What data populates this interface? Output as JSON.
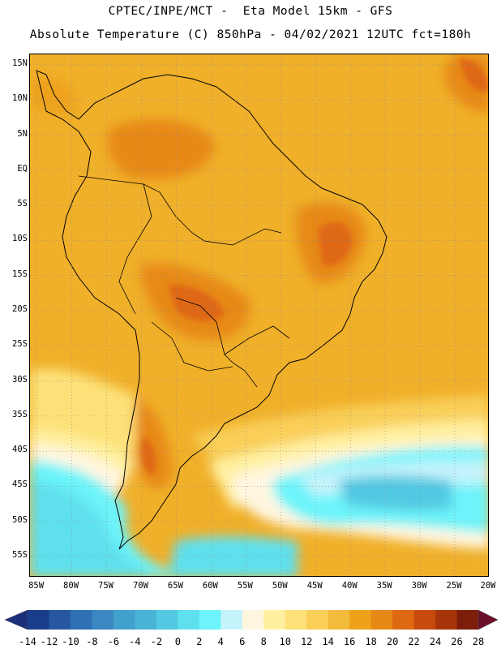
{
  "header": {
    "line1": "CPTEC/INPE/MCT -  Eta Model 15km - GFS",
    "line2": "Absolute Temperature (C) 850hPa - 04/02/2021 12UTC fct=180h"
  },
  "map": {
    "lat_labels": [
      "15N",
      "10N",
      "5N",
      "EQ",
      "5S",
      "10S",
      "15S",
      "20S",
      "25S",
      "30S",
      "35S",
      "40S",
      "45S",
      "50S",
      "55S"
    ],
    "lon_labels": [
      "85W",
      "80W",
      "75W",
      "70W",
      "65W",
      "60W",
      "55W",
      "50W",
      "45W",
      "40W",
      "35W",
      "30W",
      "25W",
      "20W"
    ],
    "lat_range": [
      -58,
      16.5
    ],
    "lon_range": [
      -86,
      -20
    ],
    "grid": "dotted every 5 degrees"
  },
  "colorbar": {
    "labels": [
      "-14",
      "-12",
      "-10",
      "-8",
      "-6",
      "-4",
      "-2",
      "0",
      "2",
      "4",
      "6",
      "8",
      "10",
      "12",
      "14",
      "16",
      "18",
      "20",
      "22",
      "24",
      "26",
      "28"
    ],
    "colors": [
      "#1a3d8a",
      "#2757a3",
      "#3070b5",
      "#3a87c2",
      "#42a0cc",
      "#49b4d6",
      "#52c8e2",
      "#5ee0ee",
      "#6cf4fa",
      "#c5f3fb",
      "#fff6e0",
      "#fff0a0",
      "#fde178",
      "#f9cf58",
      "#f3bb3c",
      "#eea21a",
      "#e78917",
      "#df6812",
      "#c84a0c",
      "#a8340a",
      "#7c1e0a"
    ]
  }
}
